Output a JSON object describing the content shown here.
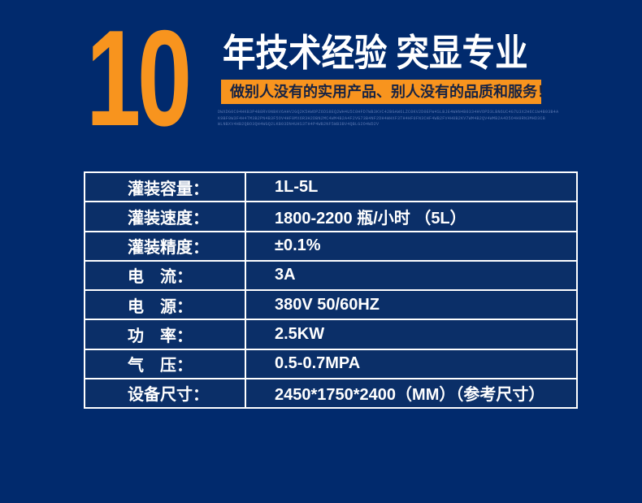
{
  "colors": {
    "background": "#012a6d",
    "accent_orange": "#f8941e",
    "cell_blue": "#0b2f68",
    "banner_text": "#172343",
    "fine_print": "#5a77b0",
    "border_white": "#ffffff",
    "text_white": "#ffffff"
  },
  "header": {
    "big_number": "10",
    "title": "年技术经验 突显专业",
    "banner": "做别人没有的实用产品、别人没有的品质和服务！",
    "fine_print_lines": [
      "DWXDG0C94HKB3P4B8RV0NBKV6AHV2GQ2K5HWOPZ6DS8EQ2WH4U5C0HFD7WB3KVC42BGAW6LZC0KV2D0EFW4SLBJE4WHN4B0334HVOPD3LBN6UC4G7U3X2H6C1W4B93B4A",
      "K9BF0W3F4H4TM3B2PN4B3F5OV4HF0MX6R3H2DBN2MC4WM4B2A4F2VG73B4NF2DH4WHXF3TH4HF0FN3CHF4WB2FV4H0B2KV7WM4B2QV4WMB2A4D5O4H9RN3MHD3CB",
      "WLNBXV4HB2QBO3QH4WGQ2LKB03DN4UHS3TH4P4WB2NF5WB3BV4QBLG2O4WD2V"
    ]
  },
  "spec_table": {
    "rows": [
      {
        "label": "灌装容量：",
        "value": "1L-5L"
      },
      {
        "label": "灌装速度：",
        "value": "1800-2200 瓶/小时 （5L）"
      },
      {
        "label": "灌装精度：",
        "value": "±0.1%"
      },
      {
        "label": "电　流：",
        "value": "3A"
      },
      {
        "label": "电　源：",
        "value": "380V 50/60HZ"
      },
      {
        "label": "功　率：",
        "value": "2.5KW"
      },
      {
        "label": "气　压：",
        "value": "0.5-0.7MPA"
      },
      {
        "label": "设备尺寸：",
        "value": "2450*1750*2400（MM）（参考尺寸）"
      }
    ]
  }
}
